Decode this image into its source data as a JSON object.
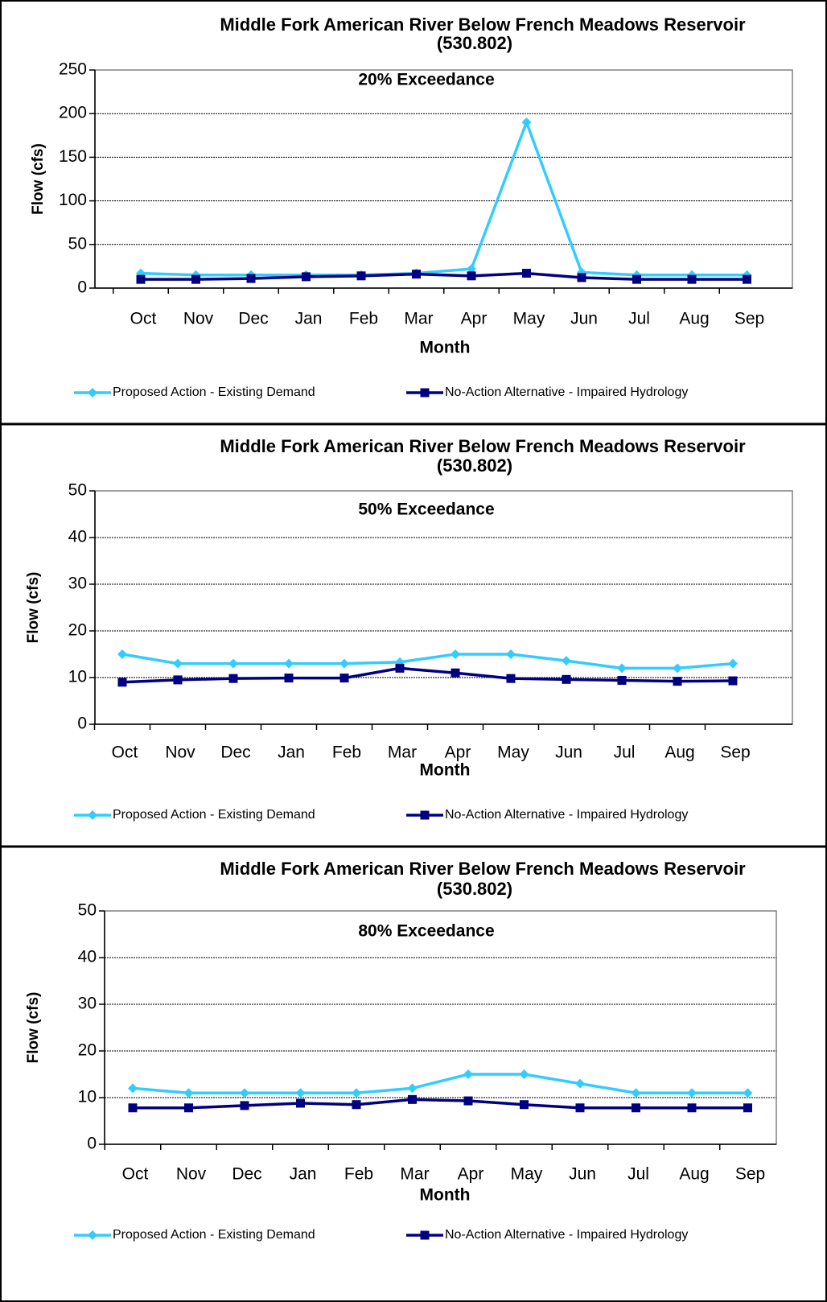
{
  "chart_data": [
    {
      "type": "line",
      "title": "Middle Fork American River Below French Meadows Reservoir",
      "subtitle": "(530.802)",
      "annotation": "20% Exceedance",
      "x_label": "Month",
      "y_label": "Flow (cfs)",
      "categories": [
        "Oct",
        "Nov",
        "Dec",
        "Jan",
        "Feb",
        "Mar",
        "Apr",
        "May",
        "Jun",
        "Jul",
        "Aug",
        "Sep"
      ],
      "series": [
        {
          "name": "Proposed Action - Existing Demand",
          "color": "#33ccff",
          "marker": "diamond",
          "values": [
            17,
            15,
            15,
            15,
            15,
            17,
            22,
            190,
            18,
            15,
            15,
            15
          ]
        },
        {
          "name": "No-Action Alternative - Impaired Hydrology",
          "color": "#000080",
          "marker": "square",
          "values": [
            10,
            10,
            11,
            13,
            14,
            16,
            14,
            17,
            12,
            10,
            10,
            10
          ]
        }
      ],
      "ylim": [
        0,
        250
      ],
      "yticks": [
        0,
        50,
        100,
        150,
        200,
        250
      ],
      "grid": true
    },
    {
      "type": "line",
      "title": "Middle Fork American River Below French Meadows Reservoir",
      "subtitle": "(530.802)",
      "annotation": "50% Exceedance",
      "x_label": "Month",
      "y_label": "Flow (cfs)",
      "categories": [
        "Oct",
        "Nov",
        "Dec",
        "Jan",
        "Feb",
        "Mar",
        "Apr",
        "May",
        "Jun",
        "Jul",
        "Aug",
        "Sep"
      ],
      "series": [
        {
          "name": "Proposed Action - Existing Demand",
          "color": "#33ccff",
          "marker": "diamond",
          "values": [
            15,
            13,
            13,
            13,
            13,
            13.3,
            15,
            15,
            13.6,
            12,
            12,
            13
          ]
        },
        {
          "name": "No-Action Alternative - Impaired Hydrology",
          "color": "#000080",
          "marker": "square",
          "values": [
            9,
            9.5,
            9.8,
            9.9,
            9.9,
            12,
            11,
            9.8,
            9.6,
            9.4,
            9.2,
            9.3
          ]
        }
      ],
      "ylim": [
        0,
        50
      ],
      "yticks": [
        0,
        10,
        20,
        30,
        40,
        50
      ],
      "grid": true
    },
    {
      "type": "line",
      "title": "Middle Fork American River Below French Meadows Reservoir",
      "subtitle": "(530.802)",
      "annotation": "80% Exceedance",
      "x_label": "Month",
      "y_label": "Flow (cfs)",
      "categories": [
        "Oct",
        "Nov",
        "Dec",
        "Jan",
        "Feb",
        "Mar",
        "Apr",
        "May",
        "Jun",
        "Jul",
        "Aug",
        "Sep"
      ],
      "series": [
        {
          "name": "Proposed Action - Existing Demand",
          "color": "#33ccff",
          "marker": "diamond",
          "values": [
            12,
            11,
            11,
            11,
            11,
            12,
            15,
            15,
            13,
            11,
            11,
            11
          ]
        },
        {
          "name": "No-Action Alternative - Impaired Hydrology",
          "color": "#000080",
          "marker": "square",
          "values": [
            7.8,
            7.8,
            8.3,
            8.8,
            8.5,
            9.6,
            9.3,
            8.5,
            7.8,
            7.8,
            7.8,
            7.8
          ]
        }
      ],
      "ylim": [
        0,
        50
      ],
      "yticks": [
        0,
        10,
        20,
        30,
        40,
        50
      ],
      "grid": true
    }
  ]
}
